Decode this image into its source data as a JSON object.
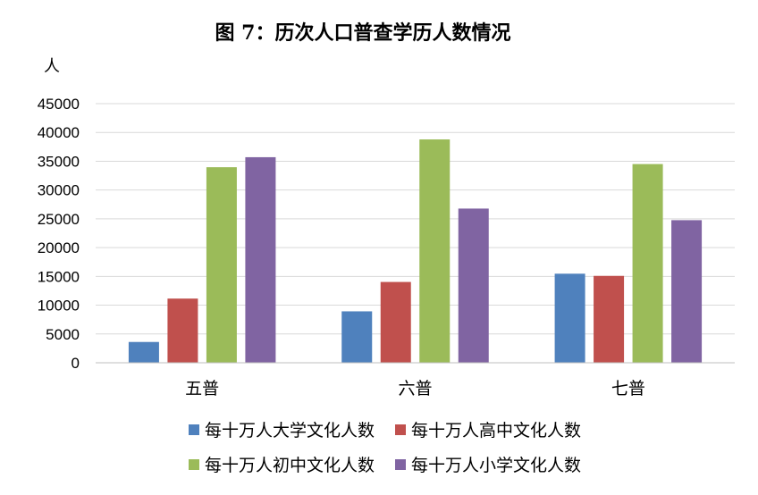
{
  "chart_data": {
    "type": "bar",
    "title": "图 7：历次人口普查学历人数情况",
    "ylabel": "人",
    "xlabel": "",
    "categories": [
      "五普",
      "六普",
      "七普"
    ],
    "ylim": [
      0,
      45000
    ],
    "yticks": [
      0,
      5000,
      10000,
      15000,
      20000,
      25000,
      30000,
      35000,
      40000,
      45000
    ],
    "grid": true,
    "legend_position": "bottom",
    "series": [
      {
        "name": "每十万人大学文化人数",
        "color": "#4F81BD",
        "values": [
          3611,
          8930,
          15467
        ]
      },
      {
        "name": "每十万人高中文化人数",
        "color": "#C0504D",
        "values": [
          11146,
          14032,
          15088
        ]
      },
      {
        "name": "每十万人初中文化人数",
        "color": "#9BBB59",
        "values": [
          33961,
          38788,
          34507
        ]
      },
      {
        "name": "每十万人小学文化人数",
        "color": "#8064A2",
        "values": [
          35701,
          26779,
          24767
        ]
      }
    ]
  }
}
